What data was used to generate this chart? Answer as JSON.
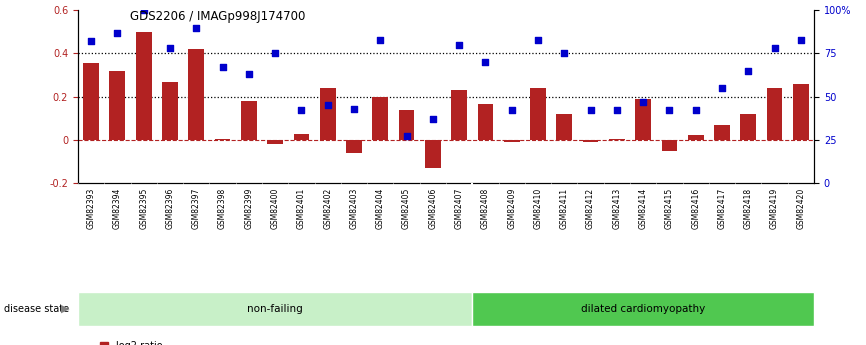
{
  "title": "GDS2206 / IMAGp998J174700",
  "samples": [
    "GSM82393",
    "GSM82394",
    "GSM82395",
    "GSM82396",
    "GSM82397",
    "GSM82398",
    "GSM82399",
    "GSM82400",
    "GSM82401",
    "GSM82402",
    "GSM82403",
    "GSM82404",
    "GSM82405",
    "GSM82406",
    "GSM82407",
    "GSM82408",
    "GSM82409",
    "GSM82410",
    "GSM82411",
    "GSM82412",
    "GSM82413",
    "GSM82414",
    "GSM82415",
    "GSM82416",
    "GSM82417",
    "GSM82418",
    "GSM82419",
    "GSM82420"
  ],
  "log2_ratio": [
    0.355,
    0.32,
    0.5,
    0.27,
    0.42,
    0.005,
    0.18,
    -0.02,
    0.025,
    0.24,
    -0.06,
    0.2,
    0.14,
    -0.13,
    0.23,
    0.165,
    -0.01,
    0.24,
    0.12,
    -0.01,
    0.005,
    0.19,
    -0.05,
    0.02,
    0.07,
    0.12,
    0.24,
    0.26
  ],
  "percentile_rank": [
    82,
    87,
    100,
    78,
    90,
    67,
    63,
    75,
    42,
    45,
    43,
    83,
    27,
    37,
    80,
    70,
    42,
    83,
    75,
    42,
    42,
    47,
    42,
    42,
    55,
    65,
    78,
    83
  ],
  "non_failing_count": 15,
  "dilated_count": 13,
  "left_ylim": [
    -0.2,
    0.6
  ],
  "right_ylim": [
    0,
    100
  ],
  "left_yticks": [
    -0.2,
    0.0,
    0.2,
    0.4,
    0.6
  ],
  "right_yticks": [
    0,
    25,
    50,
    75,
    100
  ],
  "hline_values": [
    0.2,
    0.4
  ],
  "bar_color": "#b22222",
  "scatter_color": "#0000cc",
  "non_failing_color": "#c8f0c8",
  "dilated_color": "#50c850",
  "xtick_bg_color": "#c0c0c0",
  "dotted_line_color": "#000000",
  "zero_line_color": "#b22222",
  "bar_width": 0.6
}
